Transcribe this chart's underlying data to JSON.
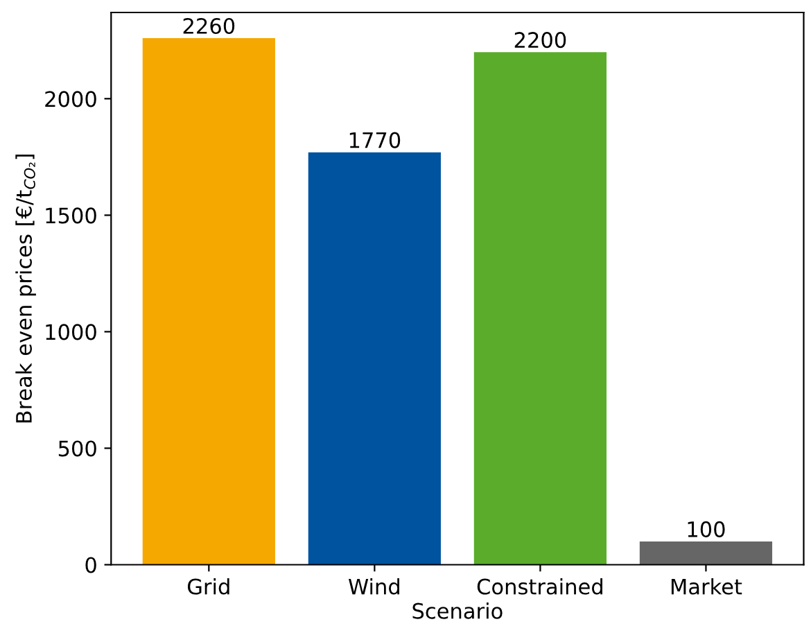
{
  "chart_data": {
    "type": "bar",
    "xlabel": "Scenario",
    "ylabel": "Break even prices [€/t$_{CO₂}$]",
    "categories": [
      "Grid",
      "Wind",
      "Constrained",
      "Market"
    ],
    "values": [
      2260,
      1770,
      2200,
      100
    ],
    "colors": [
      "#f5a800",
      "#00539f",
      "#5aac2a",
      "#666666"
    ],
    "ylim": [
      0,
      2370
    ],
    "yticks": [
      0,
      500,
      1000,
      1500,
      2000
    ],
    "data_labels": true
  }
}
